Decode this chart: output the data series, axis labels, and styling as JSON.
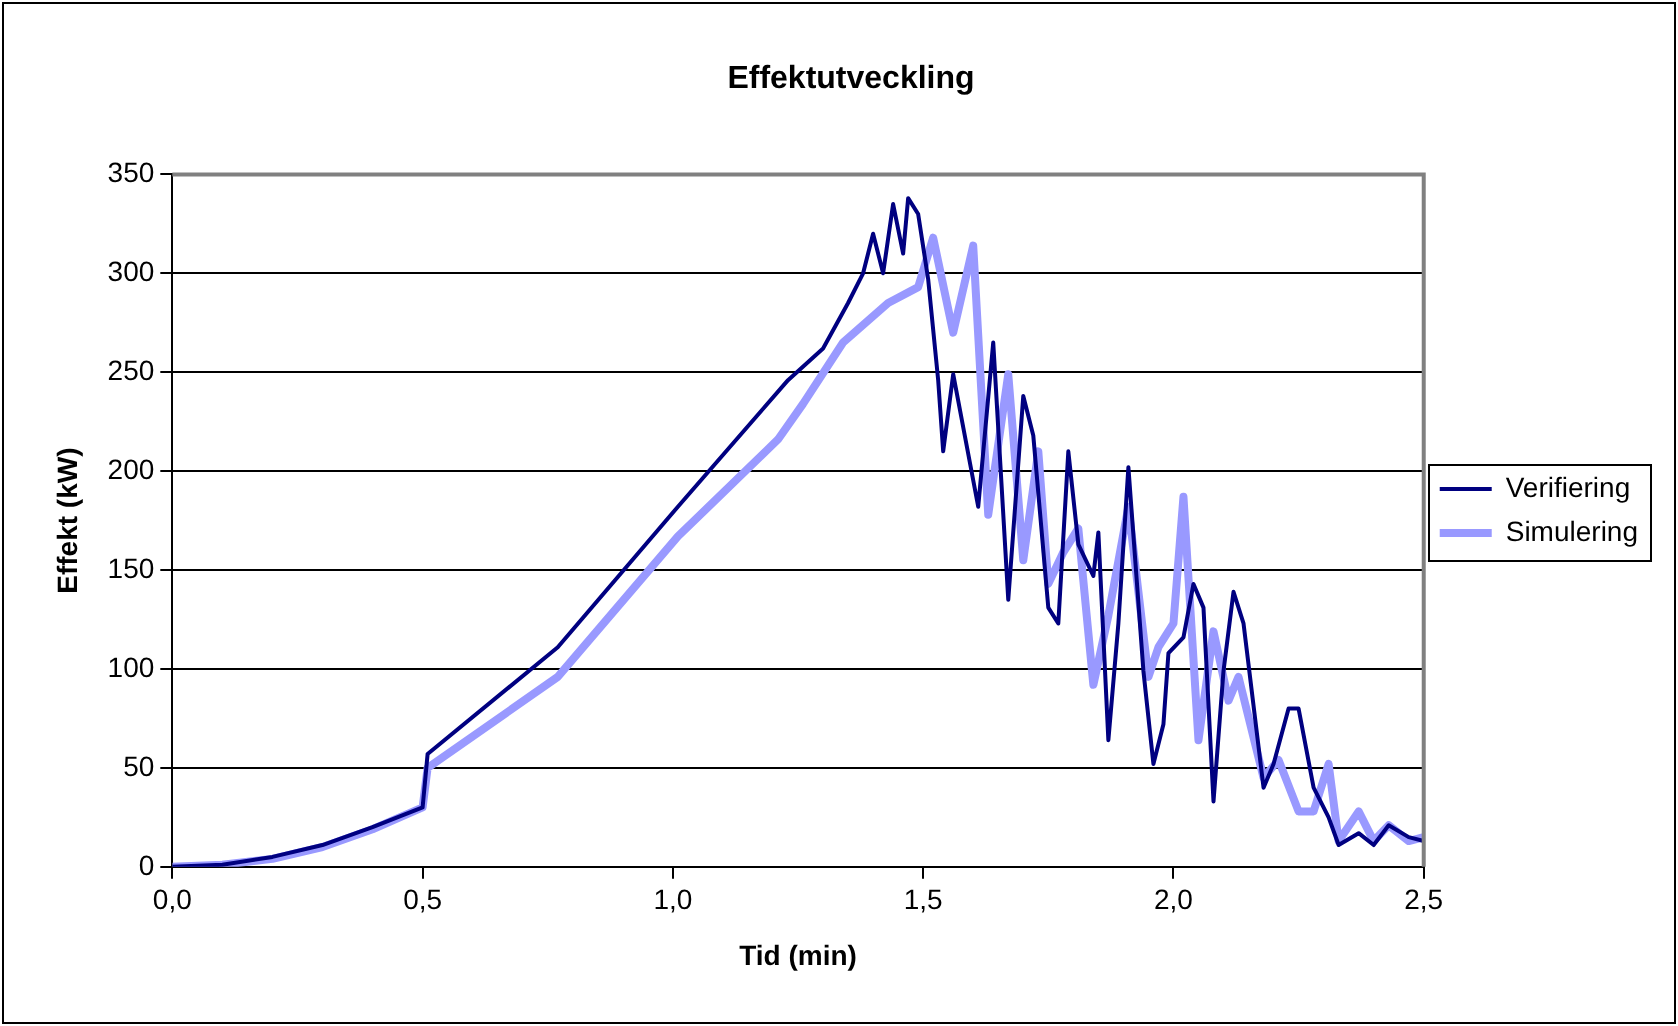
{
  "chart_data": {
    "type": "line",
    "title": "Effektutveckling",
    "xlabel": "Tid (min)",
    "ylabel": "Effekt (kW)",
    "xlim": [
      0,
      2.5
    ],
    "xticks": [
      {
        "value": 0,
        "label": "0,0"
      },
      {
        "value": 0.5,
        "label": "0,5"
      },
      {
        "value": 1,
        "label": "1,0"
      },
      {
        "value": 1.5,
        "label": "1,5"
      },
      {
        "value": 2,
        "label": "2,0"
      },
      {
        "value": 2.5,
        "label": "2,5"
      }
    ],
    "ylim": [
      0,
      350
    ],
    "yticks": [
      0,
      50,
      100,
      150,
      200,
      250,
      300,
      350
    ],
    "grid": "y",
    "legend": "right",
    "marker": "none",
    "line_style": "solid",
    "series": [
      {
        "name": "Verifiering",
        "color": "#000080",
        "x": [
          0,
          0.1,
          0.2,
          0.3,
          0.4,
          0.5,
          0.51,
          0.77,
          1.01,
          1.23,
          1.3,
          1.35,
          1.38,
          1.4,
          1.42,
          1.44,
          1.46,
          1.47,
          1.49,
          1.51,
          1.53,
          1.54,
          1.56,
          1.61,
          1.64,
          1.67,
          1.7,
          1.72,
          1.75,
          1.77,
          1.79,
          1.81,
          1.84,
          1.85,
          1.87,
          1.89,
          1.91,
          1.94,
          1.96,
          1.98,
          1.99,
          2.02,
          2.04,
          2.06,
          2.08,
          2.1,
          2.12,
          2.14,
          2.18,
          2.2,
          2.23,
          2.25,
          2.28,
          2.31,
          2.33,
          2.37,
          2.4,
          2.43,
          2.47,
          2.5
        ],
        "values": [
          0,
          1,
          5,
          11,
          20,
          30,
          57,
          111,
          182,
          246,
          262,
          285,
          300,
          320,
          300,
          335,
          310,
          338,
          330,
          297,
          246,
          210,
          249,
          182,
          265,
          135,
          238,
          218,
          131,
          123,
          210,
          163,
          147,
          169,
          64,
          123,
          202,
          99,
          52,
          72,
          108,
          116,
          143,
          131,
          33,
          99,
          139,
          123,
          40,
          52,
          80,
          80,
          40,
          25,
          11,
          17,
          11,
          21,
          15,
          13
        ]
      },
      {
        "name": "Simulering",
        "color": "#9999ff",
        "x": [
          0,
          0.1,
          0.2,
          0.3,
          0.4,
          0.5,
          0.51,
          0.77,
          1.01,
          1.21,
          1.26,
          1.34,
          1.43,
          1.49,
          1.52,
          1.56,
          1.6,
          1.63,
          1.67,
          1.7,
          1.73,
          1.75,
          1.78,
          1.81,
          1.84,
          1.87,
          1.91,
          1.95,
          1.97,
          2.0,
          2.02,
          2.05,
          2.08,
          2.11,
          2.13,
          2.18,
          2.21,
          2.25,
          2.28,
          2.31,
          2.33,
          2.37,
          2.4,
          2.43,
          2.47,
          2.5
        ],
        "values": [
          0,
          1,
          4,
          10,
          19,
          30,
          50,
          96,
          167,
          216,
          234,
          265,
          285,
          293,
          318,
          270,
          314,
          178,
          249,
          155,
          210,
          143,
          159,
          171,
          92,
          127,
          182,
          96,
          111,
          123,
          187,
          64,
          119,
          84,
          96,
          45,
          54,
          28,
          28,
          52,
          13,
          28,
          13,
          21,
          13,
          15
        ]
      }
    ]
  }
}
